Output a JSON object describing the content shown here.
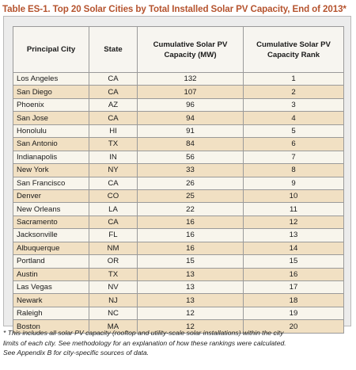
{
  "title": "Table ES-1. Top 20 Solar Cities by Total Installed Solar PV Capacity, End of 2013*",
  "headers": {
    "city": "Principal City",
    "state": "State",
    "capacity": "Cumulative Solar PV Capacity (MW)",
    "rank": "Cumulative Solar PV Capacity Rank"
  },
  "rows": [
    {
      "city": "Los Angeles",
      "state": "CA",
      "capacity": "132",
      "rank": "1"
    },
    {
      "city": "San Diego",
      "state": "CA",
      "capacity": "107",
      "rank": "2"
    },
    {
      "city": "Phoenix",
      "state": "AZ",
      "capacity": "96",
      "rank": "3"
    },
    {
      "city": "San Jose",
      "state": "CA",
      "capacity": "94",
      "rank": "4"
    },
    {
      "city": "Honolulu",
      "state": "HI",
      "capacity": "91",
      "rank": "5"
    },
    {
      "city": "San Antonio",
      "state": "TX",
      "capacity": "84",
      "rank": "6"
    },
    {
      "city": "Indianapolis",
      "state": "IN",
      "capacity": "56",
      "rank": "7"
    },
    {
      "city": "New York",
      "state": "NY",
      "capacity": "33",
      "rank": "8"
    },
    {
      "city": "San Francisco",
      "state": "CA",
      "capacity": "26",
      "rank": "9"
    },
    {
      "city": "Denver",
      "state": "CO",
      "capacity": "25",
      "rank": "10"
    },
    {
      "city": "New Orleans",
      "state": "LA",
      "capacity": "22",
      "rank": "11"
    },
    {
      "city": "Sacramento",
      "state": "CA",
      "capacity": "16",
      "rank": "12"
    },
    {
      "city": "Jacksonville",
      "state": "FL",
      "capacity": "16",
      "rank": "13"
    },
    {
      "city": "Albuquerque",
      "state": "NM",
      "capacity": "16",
      "rank": "14"
    },
    {
      "city": "Portland",
      "state": "OR",
      "capacity": "15",
      "rank": "15"
    },
    {
      "city": "Austin",
      "state": "TX",
      "capacity": "13",
      "rank": "16"
    },
    {
      "city": "Las Vegas",
      "state": "NV",
      "capacity": "13",
      "rank": "17"
    },
    {
      "city": "Newark",
      "state": "NJ",
      "capacity": "13",
      "rank": "18"
    },
    {
      "city": "Raleigh",
      "state": "NC",
      "capacity": "12",
      "rank": "19"
    },
    {
      "city": "Boston",
      "state": "MA",
      "capacity": "12",
      "rank": "20"
    }
  ],
  "footnote": [
    "* This includes all solar PV capacity (rooftop and utility-scale solar installations) within the city",
    "limits of each city. See methodology for an explanation of how these rankings were calculated.",
    "See Appendix B for city-specific sources of data."
  ],
  "colors": {
    "title": "#b5532e",
    "row_light": "#f8f5ec",
    "row_tan": "#f1e0c3",
    "panel": "#ececec"
  }
}
